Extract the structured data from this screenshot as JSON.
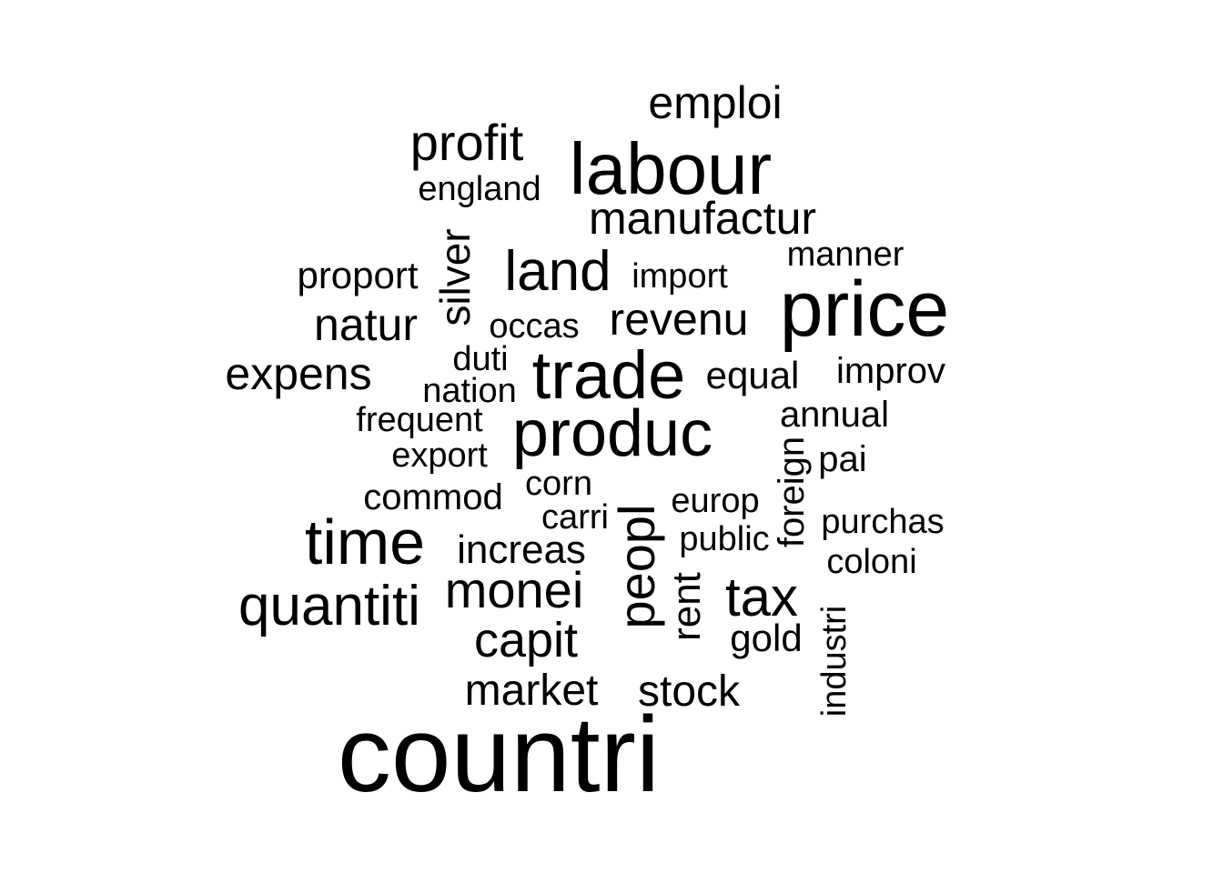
{
  "wordcloud": {
    "text_color": "#000000",
    "background": "#ffffff",
    "words": {
      "countri": "countri",
      "price": "price",
      "labour": "labour",
      "trade": "trade",
      "produc": "produc",
      "time": "time",
      "quantiti": "quantiti",
      "land": "land",
      "monei": "monei",
      "peopl": "peopl",
      "tax": "tax",
      "capit": "capit",
      "profit": "profit",
      "revenu": "revenu",
      "manufactur": "manufactur",
      "emploi": "emploi",
      "expens": "expens",
      "natur": "natur",
      "silver": "silver",
      "market": "market",
      "stock": "stock",
      "increas": "increas",
      "rent": "rent",
      "foreign": "foreign",
      "industri": "industri",
      "proport": "proport",
      "improv": "improv",
      "equal": "equal",
      "annual": "annual",
      "gold": "gold",
      "import": "import",
      "manner": "manner",
      "occas": "occas",
      "duti": "duti",
      "nation": "nation",
      "frequent": "frequent",
      "export": "export",
      "commod": "commod",
      "corn": "corn",
      "carri": "carri",
      "europ": "europ",
      "public": "public",
      "pai": "pai",
      "purchas": "purchas",
      "coloni": "coloni",
      "england": "england"
    }
  }
}
